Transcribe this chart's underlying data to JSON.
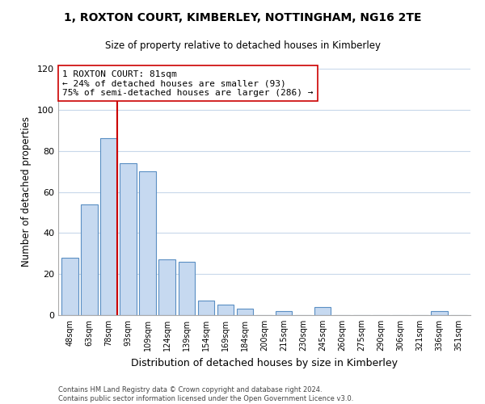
{
  "title": "1, ROXTON COURT, KIMBERLEY, NOTTINGHAM, NG16 2TE",
  "subtitle": "Size of property relative to detached houses in Kimberley",
  "xlabel": "Distribution of detached houses by size in Kimberley",
  "ylabel": "Number of detached properties",
  "bar_labels": [
    "48sqm",
    "63sqm",
    "78sqm",
    "93sqm",
    "109sqm",
    "124sqm",
    "139sqm",
    "154sqm",
    "169sqm",
    "184sqm",
    "200sqm",
    "215sqm",
    "230sqm",
    "245sqm",
    "260sqm",
    "275sqm",
    "290sqm",
    "306sqm",
    "321sqm",
    "336sqm",
    "351sqm"
  ],
  "bar_values": [
    28,
    54,
    86,
    74,
    70,
    27,
    26,
    7,
    5,
    3,
    0,
    2,
    0,
    4,
    0,
    0,
    0,
    0,
    0,
    2,
    0
  ],
  "bar_color": "#c6d9f0",
  "bar_edgecolor": "#5a8fc3",
  "property_label": "1 ROXTON COURT: 81sqm",
  "annotation_line1": "← 24% of detached houses are smaller (93)",
  "annotation_line2": "75% of semi-detached houses are larger (286) →",
  "vline_x_index": 2,
  "vline_color": "#cc0000",
  "ylim": [
    0,
    120
  ],
  "yticks": [
    0,
    20,
    40,
    60,
    80,
    100,
    120
  ],
  "footer_line1": "Contains HM Land Registry data © Crown copyright and database right 2024.",
  "footer_line2": "Contains public sector information licensed under the Open Government Licence v3.0.",
  "bg_color": "#ffffff",
  "grid_color": "#c8d8ea"
}
